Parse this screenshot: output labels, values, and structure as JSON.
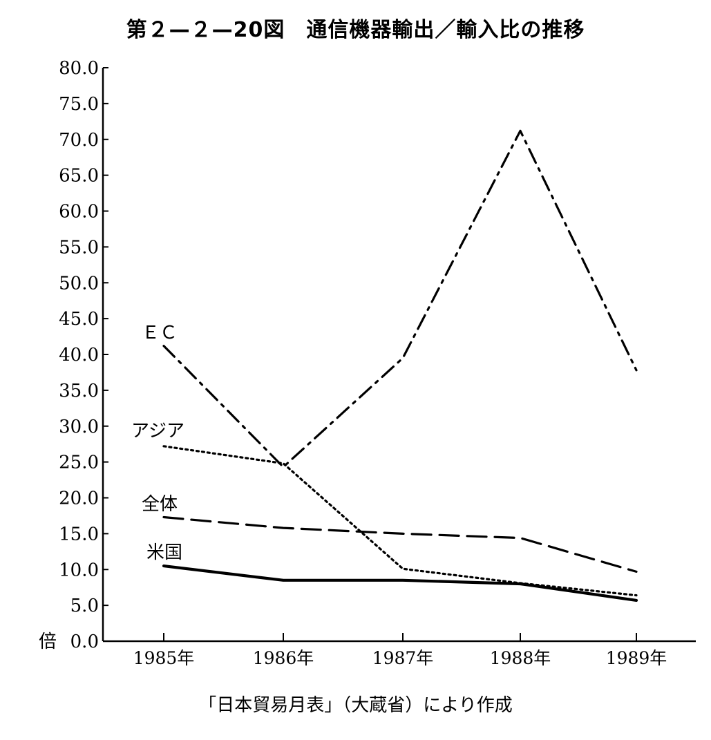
{
  "title": "第２—２—20図　通信機器輸出／輸入比の推移",
  "source": "「日本貿易月表」（大蔵省）により作成",
  "chart_data": {
    "type": "line",
    "title": "第２—２—20図　通信機器輸出／輸入比の推移",
    "ylabel": "倍",
    "xlabel": "",
    "ylim": [
      0,
      80
    ],
    "yticks": [
      "0.0",
      "5.0",
      "10.0",
      "15.0",
      "20.0",
      "25.0",
      "30.0",
      "35.0",
      "40.0",
      "45.0",
      "50.0",
      "55.0",
      "60.0",
      "65.0",
      "70.0",
      "75.0",
      "80.0"
    ],
    "categories": [
      "1985年",
      "1986年",
      "1987年",
      "1988年",
      "1989年"
    ],
    "grid": false,
    "legend": "inline labels at left",
    "series": [
      {
        "name": "ＥＣ",
        "style": "dash-dot",
        "values": [
          41.2,
          24.3,
          39.5,
          71.2,
          37.8
        ]
      },
      {
        "name": "アジア",
        "style": "dotted",
        "values": [
          27.2,
          24.8,
          10.1,
          8.1,
          6.4
        ]
      },
      {
        "name": "全体",
        "style": "dashed",
        "values": [
          17.3,
          15.8,
          15.0,
          14.4,
          9.7
        ]
      },
      {
        "name": "米国",
        "style": "solid",
        "values": [
          10.5,
          8.5,
          8.5,
          8.0,
          5.7
        ]
      }
    ]
  }
}
